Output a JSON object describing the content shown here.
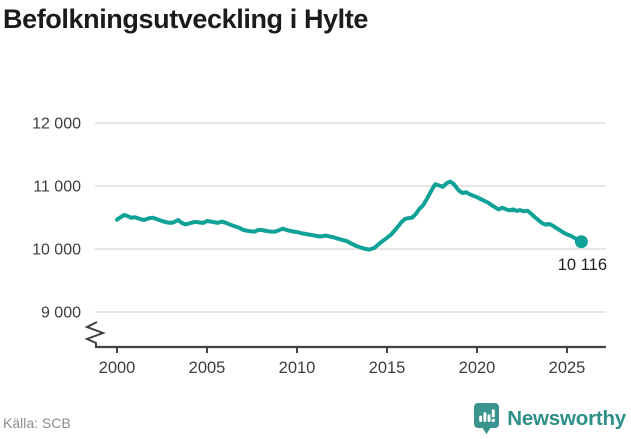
{
  "title": "Befolkningsutveckling i Hylte",
  "footer": {
    "source": "Källa: SCB",
    "brand": "Newsworthy"
  },
  "icons": {
    "newsworthy": "speech-bubble-with-bar-chart-and-exclamation"
  },
  "colors": {
    "line": "#10A296",
    "brand_icon": "#3A948D",
    "brand_text": "#2E8F88",
    "gridline": "#e3e3e3",
    "axis": "#424242",
    "title_text": "#1b1b1b",
    "tick_text": "#3d3d3d",
    "source_text": "#8c8c8c",
    "end_label_text": "#1f1f1f",
    "background": "#ffffff"
  },
  "chart_data": {
    "type": "line",
    "title": "Befolkningsutveckling i Hylte",
    "xlabel": "",
    "ylabel": "",
    "grid": "horizontal",
    "legend": "none",
    "axis_break": true,
    "xlim": [
      1998.8,
      2027.2
    ],
    "ylim": [
      8800,
      12400
    ],
    "x_ticks": [
      {
        "value": 2000,
        "label": "2000"
      },
      {
        "value": 2005,
        "label": "2005"
      },
      {
        "value": 2010,
        "label": "2010"
      },
      {
        "value": 2015,
        "label": "2015"
      },
      {
        "value": 2020,
        "label": "2020"
      },
      {
        "value": 2025,
        "label": "2025"
      }
    ],
    "y_ticks": [
      {
        "value": 12000,
        "label": "12 000"
      },
      {
        "value": 11000,
        "label": "11 000"
      },
      {
        "value": 10000,
        "label": "10 000"
      },
      {
        "value": 9000,
        "label": "9 000"
      }
    ],
    "last_value": 10116,
    "last_point_label": "10 116",
    "series": [
      {
        "name": "Befolkning i Hylte",
        "points": [
          [
            2000.0,
            10465
          ],
          [
            2000.2,
            10505
          ],
          [
            2000.4,
            10540
          ],
          [
            2000.6,
            10520
          ],
          [
            2000.8,
            10495
          ],
          [
            2001.0,
            10505
          ],
          [
            2001.3,
            10475
          ],
          [
            2001.5,
            10460
          ],
          [
            2001.8,
            10490
          ],
          [
            2002.0,
            10495
          ],
          [
            2002.3,
            10465
          ],
          [
            2002.6,
            10435
          ],
          [
            2002.8,
            10420
          ],
          [
            2003.0,
            10415
          ],
          [
            2003.2,
            10430
          ],
          [
            2003.4,
            10460
          ],
          [
            2003.6,
            10415
          ],
          [
            2003.8,
            10390
          ],
          [
            2004.0,
            10405
          ],
          [
            2004.3,
            10430
          ],
          [
            2004.6,
            10420
          ],
          [
            2004.8,
            10415
          ],
          [
            2005.0,
            10445
          ],
          [
            2005.3,
            10430
          ],
          [
            2005.6,
            10415
          ],
          [
            2005.8,
            10435
          ],
          [
            2006.0,
            10420
          ],
          [
            2006.3,
            10385
          ],
          [
            2006.6,
            10355
          ],
          [
            2006.8,
            10335
          ],
          [
            2007.0,
            10305
          ],
          [
            2007.3,
            10285
          ],
          [
            2007.6,
            10275
          ],
          [
            2007.8,
            10295
          ],
          [
            2008.0,
            10305
          ],
          [
            2008.3,
            10285
          ],
          [
            2008.6,
            10275
          ],
          [
            2008.8,
            10278
          ],
          [
            2009.0,
            10298
          ],
          [
            2009.2,
            10322
          ],
          [
            2009.5,
            10295
          ],
          [
            2009.8,
            10278
          ],
          [
            2010.0,
            10268
          ],
          [
            2010.3,
            10248
          ],
          [
            2010.6,
            10232
          ],
          [
            2011.0,
            10212
          ],
          [
            2011.3,
            10198
          ],
          [
            2011.6,
            10212
          ],
          [
            2011.8,
            10200
          ],
          [
            2012.0,
            10188
          ],
          [
            2012.3,
            10162
          ],
          [
            2012.6,
            10138
          ],
          [
            2012.8,
            10122
          ],
          [
            2013.0,
            10088
          ],
          [
            2013.3,
            10048
          ],
          [
            2013.6,
            10018
          ],
          [
            2013.8,
            10002
          ],
          [
            2014.0,
            9990
          ],
          [
            2014.3,
            10018
          ],
          [
            2014.6,
            10092
          ],
          [
            2014.8,
            10135
          ],
          [
            2015.0,
            10178
          ],
          [
            2015.2,
            10222
          ],
          [
            2015.5,
            10318
          ],
          [
            2015.8,
            10425
          ],
          [
            2016.0,
            10478
          ],
          [
            2016.2,
            10490
          ],
          [
            2016.4,
            10498
          ],
          [
            2016.6,
            10555
          ],
          [
            2016.8,
            10638
          ],
          [
            2017.0,
            10692
          ],
          [
            2017.2,
            10788
          ],
          [
            2017.4,
            10892
          ],
          [
            2017.6,
            10995
          ],
          [
            2017.7,
            11028
          ],
          [
            2017.9,
            11008
          ],
          [
            2018.1,
            10988
          ],
          [
            2018.3,
            11042
          ],
          [
            2018.5,
            11072
          ],
          [
            2018.7,
            11035
          ],
          [
            2018.9,
            10958
          ],
          [
            2019.0,
            10925
          ],
          [
            2019.2,
            10888
          ],
          [
            2019.4,
            10902
          ],
          [
            2019.6,
            10868
          ],
          [
            2019.8,
            10845
          ],
          [
            2020.0,
            10822
          ],
          [
            2020.3,
            10780
          ],
          [
            2020.6,
            10738
          ],
          [
            2020.8,
            10700
          ],
          [
            2021.0,
            10662
          ],
          [
            2021.2,
            10628
          ],
          [
            2021.4,
            10655
          ],
          [
            2021.6,
            10632
          ],
          [
            2021.8,
            10615
          ],
          [
            2022.0,
            10628
          ],
          [
            2022.2,
            10605
          ],
          [
            2022.4,
            10618
          ],
          [
            2022.6,
            10598
          ],
          [
            2022.8,
            10608
          ],
          [
            2023.0,
            10562
          ],
          [
            2023.2,
            10508
          ],
          [
            2023.4,
            10462
          ],
          [
            2023.6,
            10415
          ],
          [
            2023.8,
            10388
          ],
          [
            2024.0,
            10398
          ],
          [
            2024.2,
            10372
          ],
          [
            2024.4,
            10335
          ],
          [
            2024.6,
            10298
          ],
          [
            2024.8,
            10262
          ],
          [
            2025.0,
            10232
          ],
          [
            2025.2,
            10210
          ],
          [
            2025.4,
            10178
          ],
          [
            2025.6,
            10148
          ],
          [
            2025.8,
            10116
          ]
        ]
      }
    ]
  }
}
